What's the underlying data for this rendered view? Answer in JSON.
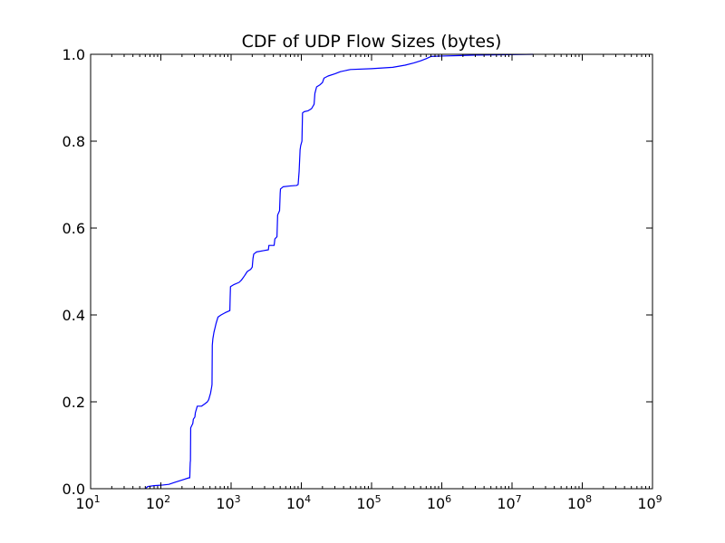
{
  "chart_data": {
    "type": "line",
    "title": "CDF of UDP Flow Sizes (bytes)",
    "xlabel": "",
    "ylabel": "",
    "x_scale": "log",
    "xlim": [
      10,
      1000000000
    ],
    "ylim": [
      0,
      1.0
    ],
    "grid": false,
    "x_ticks": [
      {
        "base": "10",
        "exp": "1",
        "value": 10
      },
      {
        "base": "10",
        "exp": "2",
        "value": 100
      },
      {
        "base": "10",
        "exp": "3",
        "value": 1000
      },
      {
        "base": "10",
        "exp": "4",
        "value": 10000
      },
      {
        "base": "10",
        "exp": "5",
        "value": 100000
      },
      {
        "base": "10",
        "exp": "6",
        "value": 1000000
      },
      {
        "base": "10",
        "exp": "7",
        "value": 10000000
      },
      {
        "base": "10",
        "exp": "8",
        "value": 100000000
      },
      {
        "base": "10",
        "exp": "9",
        "value": 1000000000
      }
    ],
    "y_ticks": [
      {
        "label": "0.0",
        "value": 0.0
      },
      {
        "label": "0.2",
        "value": 0.2
      },
      {
        "label": "0.4",
        "value": 0.4
      },
      {
        "label": "0.6",
        "value": 0.6
      },
      {
        "label": "0.8",
        "value": 0.8
      },
      {
        "label": "1.0",
        "value": 1.0
      }
    ],
    "series": [
      {
        "color": "#0000ff",
        "points": [
          [
            60,
            0.0
          ],
          [
            65,
            0.005
          ],
          [
            80,
            0.007
          ],
          [
            100,
            0.008
          ],
          [
            130,
            0.01
          ],
          [
            160,
            0.015
          ],
          [
            200,
            0.02
          ],
          [
            250,
            0.025
          ],
          [
            258,
            0.025
          ],
          [
            260,
            0.045
          ],
          [
            262,
            0.06
          ],
          [
            264,
            0.065
          ],
          [
            266,
            0.14
          ],
          [
            275,
            0.145
          ],
          [
            285,
            0.15
          ],
          [
            290,
            0.16
          ],
          [
            305,
            0.165
          ],
          [
            310,
            0.175
          ],
          [
            330,
            0.19
          ],
          [
            380,
            0.19
          ],
          [
            420,
            0.195
          ],
          [
            460,
            0.2
          ],
          [
            480,
            0.205
          ],
          [
            510,
            0.22
          ],
          [
            530,
            0.235
          ],
          [
            535,
            0.24
          ],
          [
            540,
            0.33
          ],
          [
            550,
            0.345
          ],
          [
            570,
            0.36
          ],
          [
            590,
            0.37
          ],
          [
            610,
            0.38
          ],
          [
            650,
            0.395
          ],
          [
            720,
            0.4
          ],
          [
            820,
            0.405
          ],
          [
            960,
            0.41
          ],
          [
            970,
            0.44
          ],
          [
            980,
            0.465
          ],
          [
            1100,
            0.47
          ],
          [
            1300,
            0.475
          ],
          [
            1400,
            0.48
          ],
          [
            1550,
            0.49
          ],
          [
            1700,
            0.5
          ],
          [
            1900,
            0.505
          ],
          [
            2000,
            0.51
          ],
          [
            2050,
            0.53
          ],
          [
            2100,
            0.54
          ],
          [
            2300,
            0.545
          ],
          [
            2900,
            0.548
          ],
          [
            3400,
            0.55
          ],
          [
            3450,
            0.56
          ],
          [
            4100,
            0.56
          ],
          [
            4200,
            0.575
          ],
          [
            4500,
            0.58
          ],
          [
            4600,
            0.63
          ],
          [
            4900,
            0.64
          ],
          [
            5000,
            0.68
          ],
          [
            5050,
            0.69
          ],
          [
            5500,
            0.695
          ],
          [
            7000,
            0.697
          ],
          [
            8500,
            0.698
          ],
          [
            9000,
            0.7
          ],
          [
            9300,
            0.73
          ],
          [
            9600,
            0.78
          ],
          [
            9800,
            0.79
          ],
          [
            10200,
            0.8
          ],
          [
            10400,
            0.865
          ],
          [
            11000,
            0.868
          ],
          [
            12500,
            0.87
          ],
          [
            14000,
            0.875
          ],
          [
            15200,
            0.885
          ],
          [
            15600,
            0.91
          ],
          [
            16500,
            0.925
          ],
          [
            18500,
            0.93
          ],
          [
            20000,
            0.935
          ],
          [
            21000,
            0.945
          ],
          [
            24000,
            0.95
          ],
          [
            30000,
            0.955
          ],
          [
            36000,
            0.96
          ],
          [
            50000,
            0.965
          ],
          [
            100000,
            0.967
          ],
          [
            200000,
            0.97
          ],
          [
            300000,
            0.975
          ],
          [
            400000,
            0.98
          ],
          [
            500000,
            0.985
          ],
          [
            600000,
            0.99
          ],
          [
            700000,
            0.995
          ],
          [
            1000000,
            0.996
          ],
          [
            3000000,
            0.998
          ],
          [
            20000000,
            1.0
          ]
        ]
      }
    ]
  }
}
